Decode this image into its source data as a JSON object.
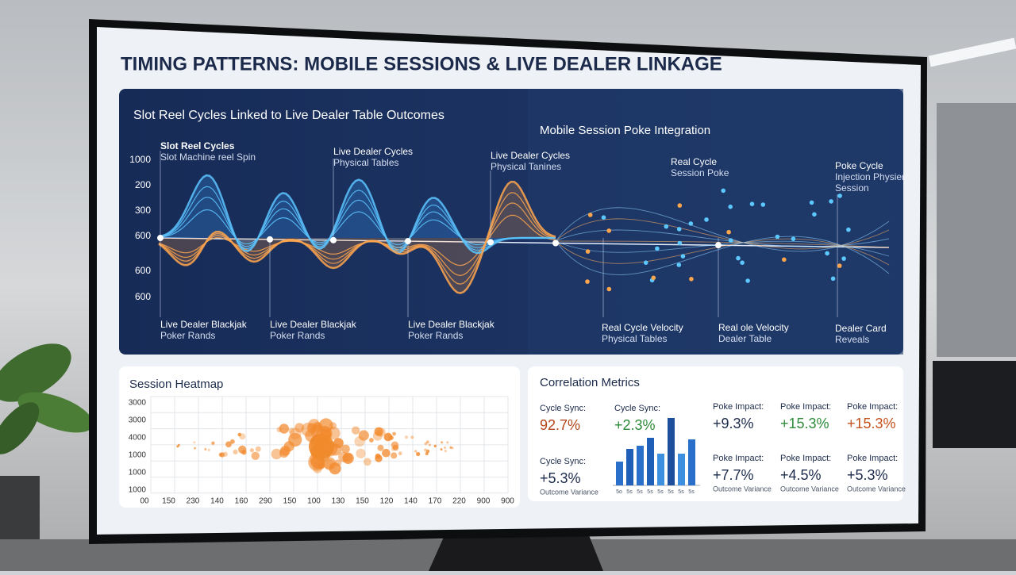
{
  "title": "TIMING PATTERNS: MOBILE SESSIONS & LIVE DEALER LINKAGE",
  "wave_panel": {
    "title": "Slot Reel Cycles Linked to Live Dealer Table Outcomes",
    "y_labels": [
      "1000",
      "200",
      "300",
      "600",
      "600",
      "600"
    ],
    "annotations": [
      {
        "lines": [
          "Slot Reel Cycles",
          "Slot Machine reel Spin"
        ]
      },
      {
        "lines": [
          "Live Dealer Cycles",
          "Physical Tables"
        ]
      },
      {
        "lines": [
          "Live Dealer Cycles",
          "Physical Tanines"
        ]
      },
      {
        "lines": [
          "Live Dealer Blackjak",
          "Poker Rands"
        ]
      },
      {
        "lines": [
          "Live Dealer Blackjak",
          "Poker Rands"
        ]
      },
      {
        "lines": [
          "Live Dealer Blackjak",
          "Poker Rands"
        ]
      }
    ]
  },
  "mobile_panel": {
    "title": "Mobile Session Poke Integration",
    "annotations": [
      {
        "lines": [
          "Real Cycle",
          "Session Poke"
        ]
      },
      {
        "lines": [
          "Poke Cycle",
          "Injection Physier",
          "Session"
        ]
      },
      {
        "lines": [
          "Real Cycle Velocity",
          "Physical Tables"
        ]
      },
      {
        "lines": [
          "Real ole Velocity",
          "Dealer Table"
        ]
      },
      {
        "lines": [
          "Dealer Card",
          "Reveals"
        ]
      }
    ]
  },
  "heatmap": {
    "title": "Session Heatmap",
    "y_labels": [
      "3000",
      "3000",
      "4000",
      "1000",
      "1000",
      "1000"
    ],
    "x_labels": [
      "00",
      "150",
      "230",
      "140",
      "160",
      "290",
      "150",
      "100",
      "130",
      "150",
      "120",
      "140",
      "170",
      "220",
      "900",
      "900"
    ]
  },
  "metrics": {
    "title": "Correlation Metrics",
    "items": [
      {
        "label": "Cycle Sync:",
        "value": "92.7%",
        "color": "#b5451b"
      },
      {
        "label": "Cycle Sync:",
        "value": "+2.3%",
        "color": "#2e8b3a"
      },
      {
        "label": "Poke Impact:",
        "value": "+9.3%",
        "color": "#1b2a4a"
      },
      {
        "label": "Poke Impact:",
        "value": "+15.3%",
        "color": "#2e8b3a"
      },
      {
        "label": "Poke Impact:",
        "value": "+15.3%",
        "color": "#c4501c"
      },
      {
        "label": "Cycle Sync:",
        "value": "+5.3%",
        "note": "Outcome Variance",
        "color": "#1b2a4a"
      },
      {
        "label": "Poke Impact:",
        "value": "+7.7%",
        "note": "Outcome Variance",
        "color": "#1b2a4a"
      },
      {
        "label": "Poke Impact:",
        "value": "+4.5%",
        "note": "Outcome Variance",
        "color": "#1b2a4a"
      },
      {
        "label": "Poke Impact:",
        "value": "+5.3%",
        "note": "Outcome Variance",
        "color": "#1b2a4a"
      }
    ],
    "bar_labels": [
      "5o",
      "5s",
      "5s",
      "5s",
      "5s",
      "5s",
      "5s",
      "5s"
    ]
  }
}
